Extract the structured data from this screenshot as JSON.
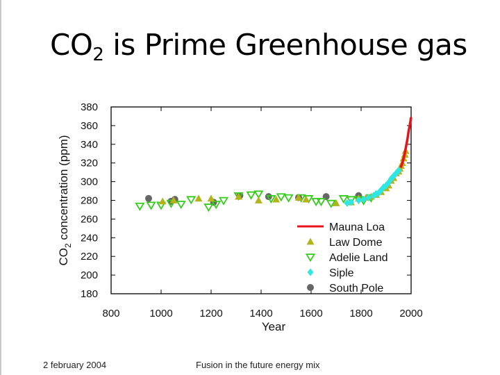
{
  "slide": {
    "title_prefix": "CO",
    "title_sub": "2",
    "title_suffix": " is Prime Greenhouse gas",
    "footer_date": "2 february 2004",
    "footer_center": "Fusion in the future energy mix"
  },
  "colors": {
    "mauna_loa": "#e8121b",
    "law_dome": "#b3b31a",
    "adelie": "#33cc1a",
    "siple": "#2ee6e6",
    "south_pole": "#666666"
  },
  "chart_data": {
    "type": "scatter",
    "title": "",
    "xlabel": "Year",
    "ylabel_prefix": "CO",
    "ylabel_sub": "2",
    "ylabel_suffix": " concentration (ppm)",
    "xlim": [
      800,
      2000
    ],
    "ylim": [
      180,
      380
    ],
    "xticks": [
      800,
      1000,
      1200,
      1400,
      1600,
      1800,
      2000
    ],
    "yticks": [
      180,
      200,
      220,
      240,
      260,
      280,
      300,
      320,
      340,
      360,
      380
    ],
    "legend_position": "lower-right",
    "series": [
      {
        "name": "Mauna Loa",
        "key": "mauna_loa",
        "marker": "line",
        "x": [
          1958,
          1965,
          1970,
          1975,
          1980,
          1985,
          1990,
          1995,
          2000
        ],
        "y": [
          315,
          320,
          325,
          331,
          338,
          345,
          354,
          361,
          369
        ]
      },
      {
        "name": "Law Dome",
        "key": "law_dome",
        "marker": "triangle-up",
        "x": [
          1006,
          1050,
          1150,
          1200,
          1310,
          1390,
          1460,
          1550,
          1580,
          1700,
          1760,
          1790,
          1820,
          1840,
          1860,
          1880,
          1900,
          1910,
          1920,
          1930,
          1940,
          1950,
          1955,
          1960,
          1965,
          1970,
          1975,
          1978
        ],
        "y": [
          279,
          280,
          282,
          282,
          284,
          280,
          281,
          283,
          281,
          277,
          278,
          282,
          283,
          284,
          286,
          289,
          293,
          296,
          301,
          304,
          309,
          311,
          314,
          317,
          320,
          325,
          329,
          333
        ]
      },
      {
        "name": "Adelie Land",
        "key": "adelie",
        "marker": "triangle-down",
        "x": [
          915,
          960,
          1000,
          1040,
          1080,
          1120,
          1190,
          1220,
          1250,
          1310,
          1360,
          1390,
          1440,
          1480,
          1510,
          1560,
          1590,
          1620,
          1640,
          1680,
          1730,
          1760,
          1790,
          1810,
          1840
        ],
        "y": [
          274,
          275,
          275,
          277,
          276,
          281,
          273,
          276,
          280,
          285,
          286,
          287,
          282,
          284,
          283,
          283,
          282,
          279,
          279,
          277,
          282,
          281,
          281,
          280,
          283
        ]
      },
      {
        "name": "Siple",
        "key": "siple",
        "marker": "diamond",
        "x": [
          1744,
          1760,
          1790,
          1810,
          1830,
          1850,
          1860,
          1870,
          1880,
          1890,
          1900,
          1910,
          1920,
          1930,
          1940,
          1950
        ],
        "y": [
          277,
          278,
          280,
          281,
          283,
          285,
          287,
          288,
          291,
          294,
          296,
          299,
          303,
          306,
          309,
          312
        ]
      },
      {
        "name": "South Pole",
        "key": "south_pole",
        "marker": "circle",
        "x": [
          950,
          1040,
          1055,
          1210,
          1315,
          1430,
          1550,
          1660,
          1790
        ],
        "y": [
          282,
          279,
          281,
          278,
          285,
          284,
          283,
          284,
          285
        ]
      }
    ]
  }
}
